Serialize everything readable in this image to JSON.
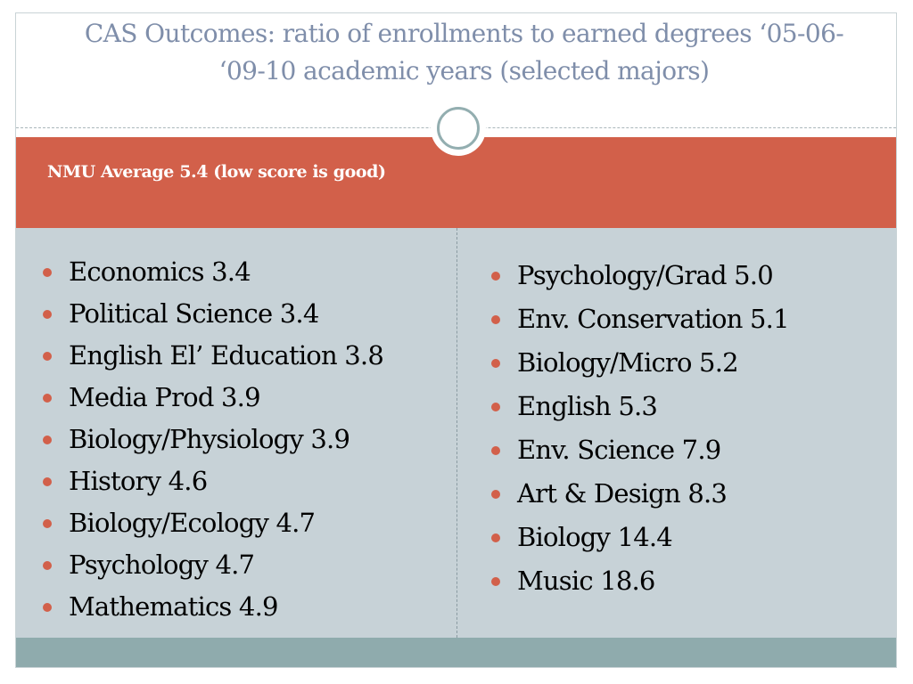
{
  "slide": {
    "title": "CAS Outcomes: ratio of enrollments to earned degrees ‘05-06- ‘09-10 academic years (selected majors)",
    "subtitle": "NMU Average 5.4  (low score is good)"
  },
  "left_list": [
    "Economics 3.4",
    "Political Science 3.4",
    "English El’ Education 3.8",
    "Media Prod 3.9",
    "Biology/Physiology 3.9",
    "History 4.6",
    "Biology/Ecology 4.7",
    "Psychology 4.7",
    "Mathematics 4.9"
  ],
  "right_list": [
    "Psychology/Grad 5.0",
    "Env. Conservation 5.1",
    "Biology/Micro 5.2",
    "English 5.3",
    "Env. Science 7.9",
    "Art & Design 8.3",
    "Biology 14.4",
    "Music 18.6"
  ],
  "colors": {
    "accent": "#d2604a",
    "title_text": "#7f8eaa",
    "content_background": "#c7d2d7",
    "footer_bar": "#8fabad"
  }
}
